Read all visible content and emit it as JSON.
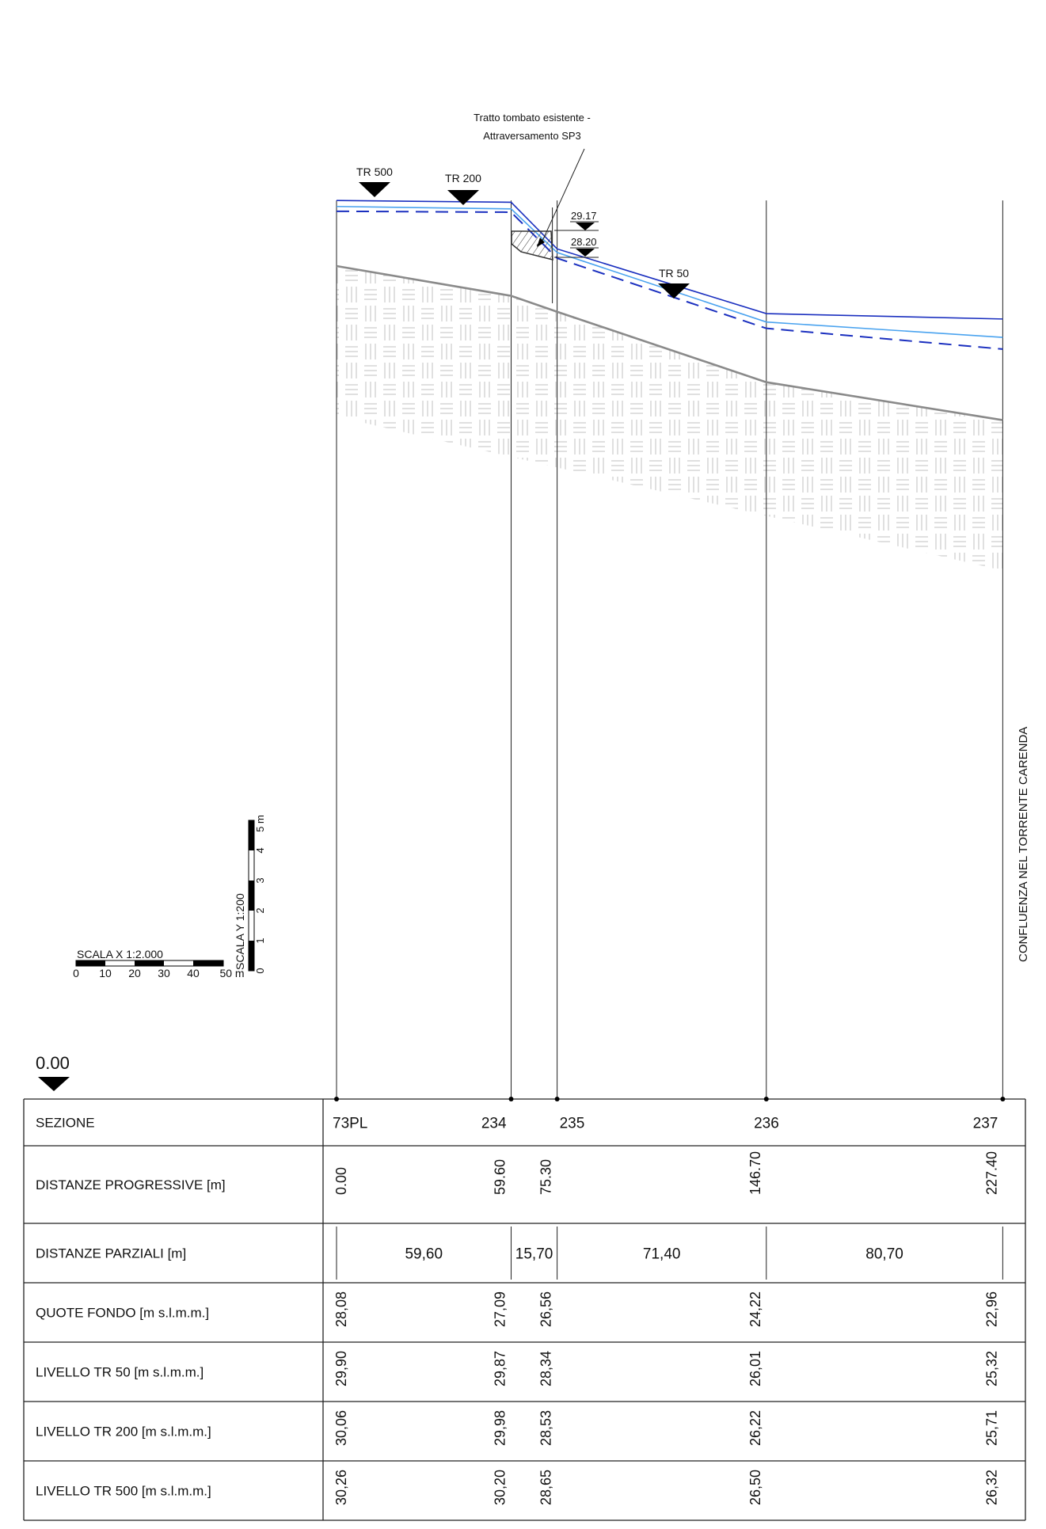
{
  "datum": "0.00",
  "culvert_note": [
    "Tratto tombato esistente -",
    "Attraversamento SP3"
  ],
  "markers": {
    "tr500": "TR 500",
    "tr200": "TR 200",
    "tr50": "TR 50",
    "elev_top": "29.17",
    "elev_bottom": "28.20"
  },
  "side_note": "CONFLUENZA NEL TORRENTE CARENDA",
  "scale_x": {
    "title": "SCALA X  1:2.000",
    "ticks": [
      "0",
      "10",
      "20",
      "30",
      "40",
      "50 m"
    ]
  },
  "scale_y": {
    "title": "SCALA Y  1:200",
    "ticks": [
      "0",
      "1",
      "2",
      "3",
      "4",
      "5 m"
    ]
  },
  "colors": {
    "tr500": "#1a2fbf",
    "tr200": "#4aa3ef",
    "tr50": "#1a2fbf",
    "ground": "#8a8a8a",
    "hatch": "#cfcfcf"
  },
  "chart_data": {
    "type": "line",
    "x": [
      0.0,
      59.6,
      75.3,
      146.7,
      227.4
    ],
    "series": [
      {
        "name": "QUOTE FONDO [m s.l.m.m.]",
        "values": [
          28.08,
          27.09,
          26.56,
          24.22,
          22.96
        ]
      },
      {
        "name": "LIVELLO TR 50 [m s.l.m.m.]",
        "values": [
          29.9,
          29.87,
          28.34,
          26.01,
          25.32
        ]
      },
      {
        "name": "LIVELLO TR 200 [m s.l.m.m.]",
        "values": [
          30.06,
          29.98,
          28.53,
          26.22,
          25.71
        ]
      },
      {
        "name": "LIVELLO TR 500 [m s.l.m.m.]",
        "values": [
          30.26,
          30.2,
          28.65,
          26.5,
          26.32
        ]
      }
    ]
  },
  "table": {
    "rows": [
      {
        "label": "SEZIONE",
        "type": "plain",
        "values": [
          "73PL",
          "234",
          "235",
          "236",
          "237"
        ]
      },
      {
        "label": "DISTANZE PROGRESSIVE [m]",
        "type": "rot",
        "values": [
          "0.00",
          "59.60",
          "75.30",
          "146.70",
          "227.40"
        ]
      },
      {
        "label": "DISTANZE PARZIALI [m]",
        "type": "partial",
        "values": [
          "59,60",
          "15,70",
          "71,40",
          "80,70"
        ]
      },
      {
        "label": "QUOTE FONDO [m s.l.m.m.]",
        "type": "rot",
        "values": [
          "28,08",
          "27,09",
          "26,56",
          "24,22",
          "22,96"
        ]
      },
      {
        "label": "LIVELLO TR 50 [m s.l.m.m.]",
        "type": "rot",
        "values": [
          "29,90",
          "29,87",
          "28,34",
          "26,01",
          "25,32"
        ]
      },
      {
        "label": "LIVELLO TR 200 [m s.l.m.m.]",
        "type": "rot",
        "values": [
          "30,06",
          "29,98",
          "28,53",
          "26,22",
          "25,71"
        ]
      },
      {
        "label": "LIVELLO TR 500 [m s.l.m.m.]",
        "type": "rot",
        "values": [
          "30,26",
          "30,20",
          "28,65",
          "26,50",
          "26,32"
        ]
      }
    ]
  }
}
